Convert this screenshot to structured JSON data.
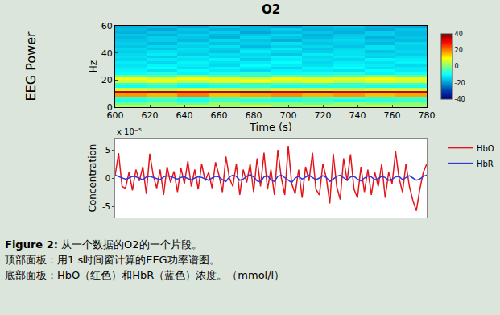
{
  "chart_data": [
    {
      "type": "heatmap",
      "title": "O2",
      "annotation": "EEG Power",
      "xlabel": "Time (s)",
      "ylabel": "Hz",
      "color": "Jet",
      "x": [
        609,
        627,
        645,
        663,
        681,
        699,
        717,
        735,
        753,
        771
      ],
      "y": [
        1,
        3,
        5,
        7,
        9,
        11,
        13,
        15,
        17,
        19,
        21,
        23,
        25,
        27,
        29,
        31,
        33,
        35,
        37,
        39,
        41,
        43,
        45,
        47,
        49,
        51,
        53,
        55,
        57,
        59
      ],
      "cells": [
        [
          4,
          2,
          5,
          3,
          6,
          2,
          4,
          3,
          5,
          2
        ],
        [
          -2,
          0,
          -3,
          1,
          -1,
          0,
          -2,
          1,
          -1,
          0
        ],
        [
          -8,
          -6,
          -9,
          -5,
          -7,
          -8,
          -6,
          -9,
          -7,
          -6
        ],
        [
          -6,
          -4,
          -7,
          -5,
          -3,
          -6,
          -5,
          -4,
          -6,
          -5
        ],
        [
          18,
          16,
          20,
          15,
          17,
          19,
          16,
          18,
          15,
          17
        ],
        [
          34,
          36,
          33,
          35,
          37,
          34,
          36,
          33,
          35,
          34
        ],
        [
          6,
          4,
          7,
          5,
          3,
          6,
          5,
          4,
          6,
          5
        ],
        [
          -9,
          -7,
          -10,
          -8,
          -6,
          -9,
          -8,
          -7,
          -9,
          -8
        ],
        [
          -6,
          -4,
          -7,
          -5,
          -6,
          -4,
          -5,
          -6,
          -4,
          -5
        ],
        [
          6,
          8,
          5,
          7,
          9,
          6,
          8,
          5,
          7,
          6
        ],
        [
          9,
          7,
          10,
          8,
          6,
          9,
          7,
          8,
          10,
          8
        ],
        [
          -3,
          -5,
          -2,
          -4,
          -6,
          -3,
          -5,
          -4,
          -2,
          -4
        ],
        [
          -10,
          -8,
          -11,
          -9,
          -7,
          -10,
          -9,
          -8,
          -11,
          -9
        ],
        [
          -11,
          -13,
          -10,
          -12,
          -14,
          -11,
          -12,
          -13,
          -10,
          -12
        ],
        [
          -12,
          -10,
          -13,
          -11,
          -12,
          -14,
          -11,
          -10,
          -13,
          -12
        ],
        [
          -13,
          -11,
          -12,
          -14,
          -10,
          -12,
          -13,
          -11,
          -12,
          -14
        ],
        [
          -12,
          -14,
          -11,
          -13,
          -12,
          -10,
          -14,
          -12,
          -13,
          -11
        ],
        [
          -14,
          -12,
          -13,
          -11,
          -15,
          -12,
          -13,
          -14,
          -11,
          -12
        ],
        [
          -13,
          -15,
          -12,
          -14,
          -13,
          -11,
          -14,
          -12,
          -15,
          -13
        ],
        [
          -14,
          -12,
          -15,
          -13,
          -14,
          -16,
          -12,
          -13,
          -14,
          -15
        ],
        [
          -15,
          -13,
          -14,
          -16,
          -12,
          -14,
          -15,
          -13,
          -16,
          -14
        ],
        [
          -14,
          -16,
          -13,
          -15,
          -14,
          -12,
          -16,
          -14,
          -13,
          -15
        ],
        [
          -16,
          -14,
          -15,
          -13,
          -17,
          -15,
          -14,
          -16,
          -13,
          -15
        ],
        [
          -15,
          -17,
          -14,
          -16,
          -15,
          -13,
          -16,
          -15,
          -17,
          -14
        ],
        [
          -16,
          -15,
          -17,
          -14,
          -16,
          -18,
          -15,
          -14,
          -16,
          -17
        ],
        [
          -17,
          -15,
          -16,
          -18,
          -14,
          -16,
          -17,
          -15,
          -18,
          -16
        ],
        [
          -16,
          -18,
          -15,
          -17,
          -16,
          -14,
          -18,
          -16,
          -15,
          -17
        ],
        [
          -18,
          -16,
          -17,
          -15,
          -19,
          -17,
          -16,
          -18,
          -15,
          -17
        ],
        [
          -17,
          -19,
          -16,
          -18,
          -17,
          -15,
          -18,
          -17,
          -19,
          -16
        ],
        [
          -18,
          -17,
          -19,
          -16,
          -18,
          -20,
          -17,
          -16,
          -18,
          -19
        ]
      ],
      "xlim": [
        600,
        780
      ],
      "xticks": [
        600,
        620,
        640,
        660,
        680,
        700,
        720,
        740,
        760,
        780
      ],
      "ylim": [
        0,
        60
      ],
      "yticks": [
        0,
        20,
        40,
        60
      ],
      "colorbar": {
        "range": [
          -40,
          40
        ],
        "ticks": [
          -40,
          -20,
          0,
          20,
          40
        ]
      }
    },
    {
      "type": "line",
      "ylabel": "Concentration",
      "annotation": "x 10⁻⁵",
      "legend": "upper right",
      "tick_labels": "y",
      "x": [
        600,
        602,
        604,
        606,
        608,
        610,
        612,
        614,
        616,
        618,
        620,
        622,
        624,
        626,
        628,
        630,
        632,
        634,
        636,
        638,
        640,
        642,
        644,
        646,
        648,
        650,
        652,
        654,
        656,
        658,
        660,
        662,
        664,
        666,
        668,
        670,
        672,
        674,
        676,
        678,
        680,
        682,
        684,
        686,
        688,
        690,
        692,
        694,
        696,
        698,
        700,
        702,
        704,
        706,
        708,
        710,
        712,
        714,
        716,
        718,
        720,
        722,
        724,
        726,
        728,
        730,
        732,
        734,
        736,
        738,
        740,
        742,
        744,
        746,
        748,
        750,
        752,
        754,
        756,
        758,
        760,
        762,
        764,
        766,
        768,
        770,
        772,
        774,
        776,
        778,
        780
      ],
      "series": [
        {
          "name": "HbO",
          "color": "#e3141b",
          "values": [
            0.5,
            4.4,
            -1.5,
            -1.8,
            1.0,
            -2.2,
            1.5,
            -0.5,
            2.0,
            -2.8,
            4.3,
            0.5,
            -1.8,
            1.5,
            -3.0,
            2.0,
            -0.8,
            1.2,
            -2.5,
            1.8,
            -1.0,
            3.0,
            -1.5,
            1.5,
            -2.0,
            2.5,
            -0.5,
            1.0,
            -1.8,
            2.8,
            0.5,
            -2.5,
            3.8,
            0.0,
            -1.5,
            2.5,
            -3.0,
            1.5,
            -0.8,
            2.5,
            -2.5,
            3.5,
            -1.5,
            4.5,
            -2.0,
            1.5,
            -3.0,
            5.0,
            0.0,
            -3.0,
            5.7,
            -1.0,
            -2.8,
            1.5,
            -3.5,
            2.0,
            -0.5,
            4.5,
            -2.0,
            -3.0,
            2.5,
            0.0,
            -4.5,
            4.3,
            -1.5,
            -3.8,
            3.5,
            -0.5,
            4.2,
            -2.0,
            -3.5,
            2.0,
            -2.5,
            1.5,
            -3.0,
            1.0,
            -1.5,
            2.5,
            -3.5,
            1.0,
            -1.0,
            4.7,
            0.0,
            -2.5,
            2.5,
            -1.5,
            -4.0,
            -5.8,
            -2.0,
            1.0,
            2.5
          ]
        },
        {
          "name": "HbR",
          "color": "#2b3bd8",
          "values": [
            0.5,
            0.3,
            0.1,
            -0.2,
            0.0,
            0.3,
            0.2,
            0.0,
            -0.3,
            0.2,
            0.3,
            0.1,
            -0.1,
            -0.3,
            0.2,
            0.4,
            0.3,
            0.0,
            -0.2,
            0.1,
            0.2,
            -0.1,
            -0.3,
            0.0,
            0.2,
            0.1,
            -0.2,
            -0.4,
            0.0,
            0.3,
            0.2,
            -0.3,
            -0.6,
            0.2,
            0.5,
            0.3,
            -0.4,
            -0.2,
            0.3,
            0.6,
            0.2,
            -0.5,
            -0.7,
            0.2,
            0.4,
            -0.3,
            -0.6,
            0.3,
            0.5,
            0.1,
            -0.4,
            -0.8,
            0.0,
            0.3,
            -0.2,
            0.2,
            0.5,
            0.1,
            -0.3,
            0.0,
            0.4,
            0.1,
            -0.6,
            -0.2,
            0.3,
            0.5,
            0.1,
            -0.4,
            0.2,
            0.3,
            -0.2,
            -0.5,
            0.0,
            0.4,
            0.2,
            -0.3,
            -0.1,
            0.3,
            0.1,
            -0.4,
            -0.2,
            0.2,
            0.3,
            -0.3,
            0.1,
            0.4,
            0.0,
            -0.4,
            -0.2,
            0.3,
            0.5
          ]
        }
      ],
      "xlim": [
        600,
        780
      ],
      "ylim": [
        -7,
        7
      ],
      "yticks": [
        -5,
        0,
        5
      ]
    }
  ],
  "caption": {
    "label": "Figure 2:",
    "lines": [
      "从一个数据的O2的一个片段。",
      "顶部面板：用1 s时间窗计算的EEG功率谱图。",
      "底部面板：HbO（红色）和HbR（蓝色）浓度。（mmol/l）"
    ]
  }
}
